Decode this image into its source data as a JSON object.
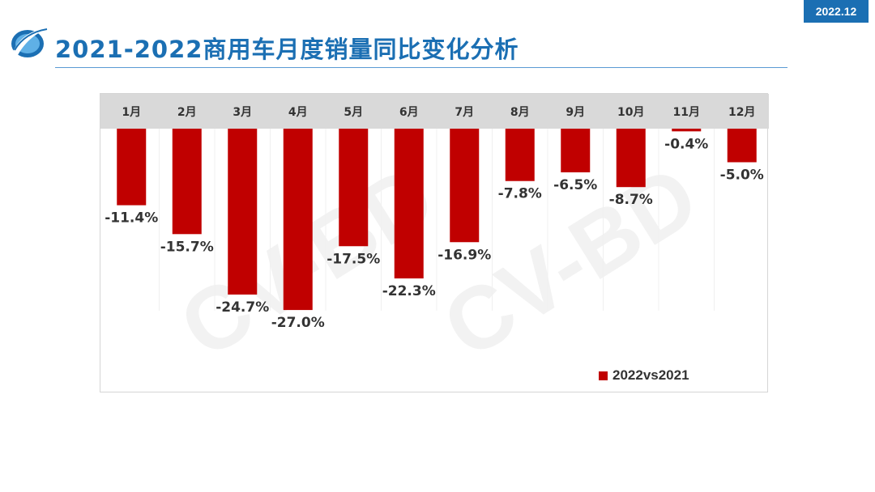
{
  "header": {
    "title": "2021-2022商用车月度销量同比变化分析",
    "date_badge": "2022.12"
  },
  "watermark": "CV-BD",
  "colors": {
    "brand_blue": "#1b6fb3",
    "bar": "#c00000",
    "header_band": "#d9d9d9"
  },
  "chart_data": {
    "type": "bar",
    "title": "",
    "xlabel": "",
    "ylabel": "",
    "categories": [
      "1月",
      "2月",
      "3月",
      "4月",
      "5月",
      "6月",
      "7月",
      "8月",
      "9月",
      "10月",
      "11月",
      "12月"
    ],
    "series": [
      {
        "name": "2022vs2021",
        "values": [
          -11.4,
          -15.7,
          -24.7,
          -27.0,
          -17.5,
          -22.3,
          -16.9,
          -7.8,
          -6.5,
          -8.7,
          -0.4,
          -5.0
        ],
        "labels": [
          "-11.4%",
          "-15.7%",
          "-24.7%",
          "-27.0%",
          "-17.5%",
          "-22.3%",
          "-16.9%",
          "-7.8%",
          "-6.5%",
          "-8.7%",
          "-0.4%",
          "-5.0%"
        ],
        "color": "#c00000"
      }
    ],
    "value_unit": "%",
    "ylim": [
      -30,
      0
    ],
    "category_axis_position": "top",
    "legend": "bottom-right",
    "grid": false
  }
}
